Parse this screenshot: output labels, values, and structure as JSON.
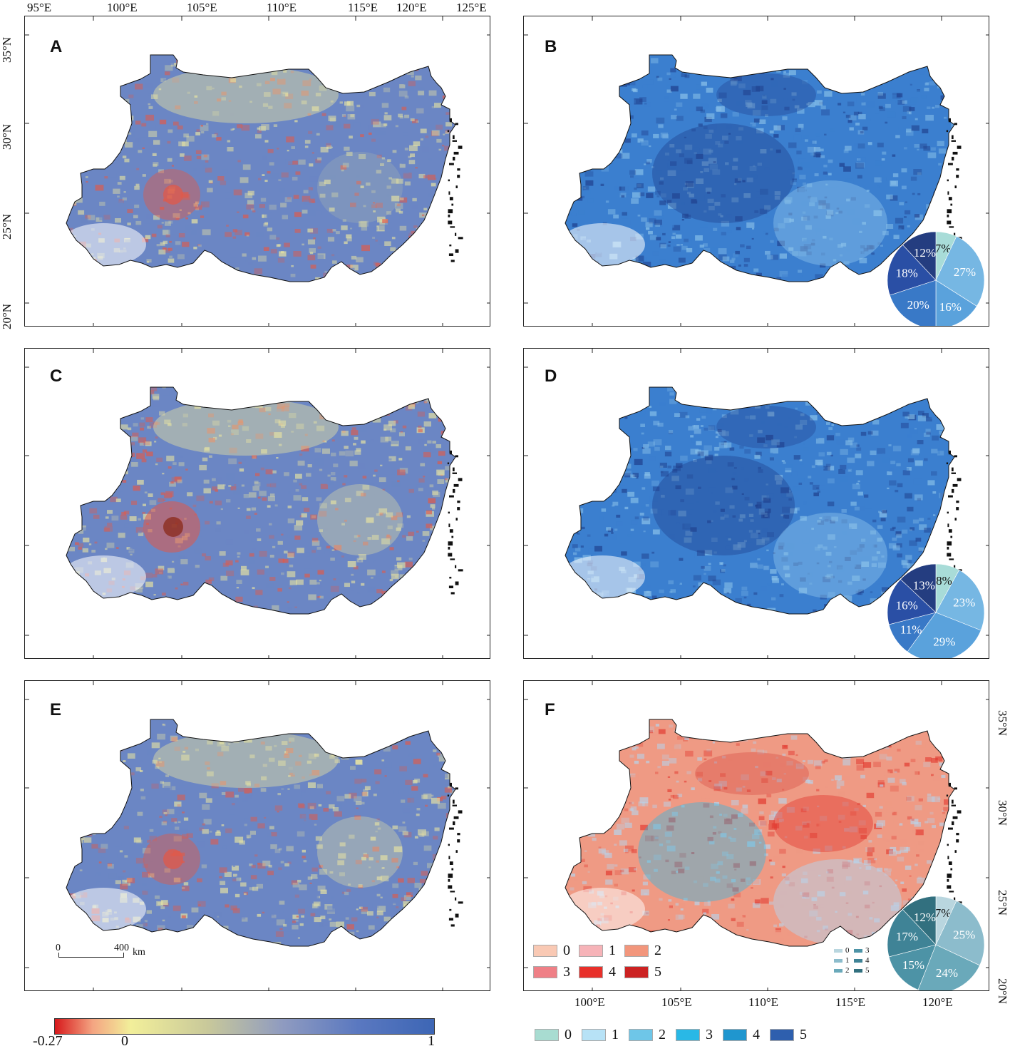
{
  "panels": [
    {
      "label": "A",
      "pie": null,
      "palette": "diverging",
      "variant": 0
    },
    {
      "label": "B",
      "palette": "blue",
      "variant": 0,
      "pie": {
        "values": [
          7,
          27,
          16,
          20,
          18,
          12
        ],
        "labels": [
          "7%",
          "27%",
          "16%",
          "20%",
          "18%",
          "12%"
        ]
      }
    },
    {
      "label": "C",
      "pie": null,
      "palette": "diverging",
      "variant": 1
    },
    {
      "label": "D",
      "palette": "blue",
      "variant": 1,
      "pie": {
        "values": [
          8,
          23,
          29,
          11,
          16,
          13
        ],
        "labels": [
          "8%",
          "23%",
          "29%",
          "11%",
          "16%",
          "13%"
        ]
      }
    },
    {
      "label": "E",
      "pie": null,
      "palette": "diverging",
      "variant": 2
    },
    {
      "label": "F",
      "palette": "mixed",
      "variant": 2,
      "pie": {
        "values": [
          7,
          25,
          24,
          15,
          17,
          12
        ],
        "labels": [
          "7%",
          "25%",
          "24%",
          "15%",
          "17%",
          "12%"
        ]
      }
    }
  ],
  "axes": {
    "top_lon_ticks": [
      "95°E",
      "100°E",
      "105°E",
      "110°E",
      "115°E",
      "120°E",
      "125°E"
    ],
    "left_lat_ticks": [
      "35°N",
      "30°N",
      "25°N",
      "20°N"
    ],
    "right_lat_ticks": [
      "35°N",
      "30°N",
      "25°N",
      "20°N"
    ],
    "bottom_lon_ticks": [
      "100°E",
      "105°E",
      "110°E",
      "115°E",
      "120°E"
    ]
  },
  "scale_bar": {
    "start": "0",
    "end": "400",
    "unit": "km"
  },
  "colorbar": {
    "min_label": "-0.27",
    "mid_label": "0",
    "max_label": "1",
    "colors": [
      "#d7191c",
      "#f4a582",
      "#f2ef9a",
      "#c9c99a",
      "#8f9bc0",
      "#5a78c0",
      "#3d66b5"
    ]
  },
  "legend_red": {
    "items": [
      {
        "label": "0",
        "color": "#f9c9b4"
      },
      {
        "label": "1",
        "color": "#f6b3b8"
      },
      {
        "label": "2",
        "color": "#f2967c"
      },
      {
        "label": "3",
        "color": "#ef7f86"
      },
      {
        "label": "4",
        "color": "#e8302a"
      },
      {
        "label": "5",
        "color": "#cc2222"
      }
    ]
  },
  "legend_mini": {
    "items": [
      {
        "label": "0",
        "color": "#b9d6df"
      },
      {
        "label": "3",
        "color": "#4d93a6"
      },
      {
        "label": "1",
        "color": "#8cbccc"
      },
      {
        "label": "4",
        "color": "#3f8396"
      },
      {
        "label": "2",
        "color": "#6aa9ba"
      },
      {
        "label": "5",
        "color": "#32707f"
      }
    ]
  },
  "legend_blue": {
    "items": [
      {
        "label": "0",
        "color": "#a8dcd1"
      },
      {
        "label": "1",
        "color": "#b7e2f6"
      },
      {
        "label": "2",
        "color": "#6ec6e8"
      },
      {
        "label": "3",
        "color": "#29b8e6"
      },
      {
        "label": "4",
        "color": "#1f96cf"
      },
      {
        "label": "5",
        "color": "#2e5fae"
      }
    ]
  },
  "pie_colors": {
    "blue": [
      "#a8dcd8",
      "#76b7e3",
      "#5aa2dc",
      "#3979c7",
      "#2a4fa5",
      "#243d80"
    ],
    "mixed": [
      "#b9d6df",
      "#8cbccc",
      "#6aa9ba",
      "#4d93a6",
      "#3f8396",
      "#32707f"
    ]
  },
  "map_colors": {
    "diverging": {
      "base": "#6b86c4",
      "low": "#e7e3a2",
      "high": "#e05a4a"
    },
    "blue": {
      "base": "#3b7fcf",
      "low": "#8cc3ea",
      "high": "#1f3f8c"
    },
    "mixed": {
      "base": "#ef9a84",
      "low": "#b7d4ec",
      "high": "#e23a30"
    }
  }
}
